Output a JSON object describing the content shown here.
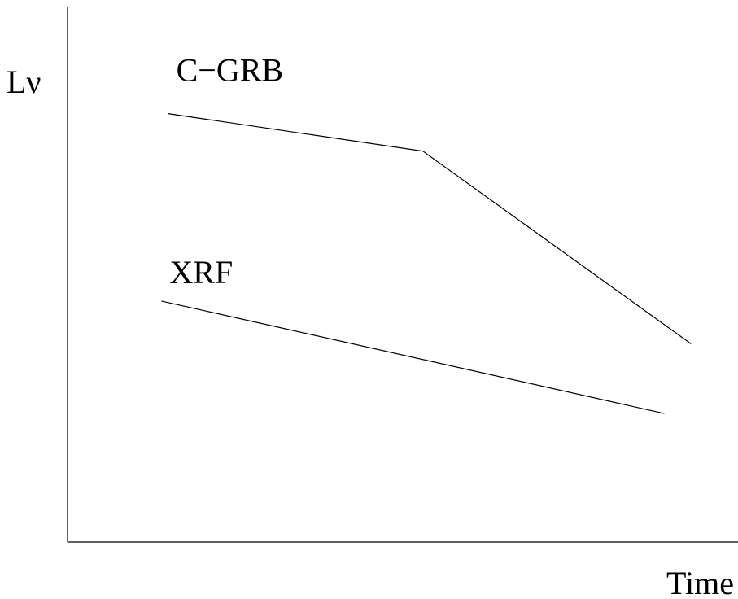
{
  "chart_data": {
    "type": "line",
    "title": "",
    "xlabel": "Time",
    "ylabel": "Lν",
    "xlim": [
      0,
      100
    ],
    "ylim": [
      0,
      100
    ],
    "grid": false,
    "legend": "none",
    "line_color": "#000000",
    "series": [
      {
        "name": "C−GRB",
        "x": [
          15,
          53,
          93
        ],
        "y": [
          80,
          73,
          37
        ]
      },
      {
        "name": "XRF",
        "x": [
          14,
          89
        ],
        "y": [
          45,
          24
        ]
      }
    ]
  }
}
